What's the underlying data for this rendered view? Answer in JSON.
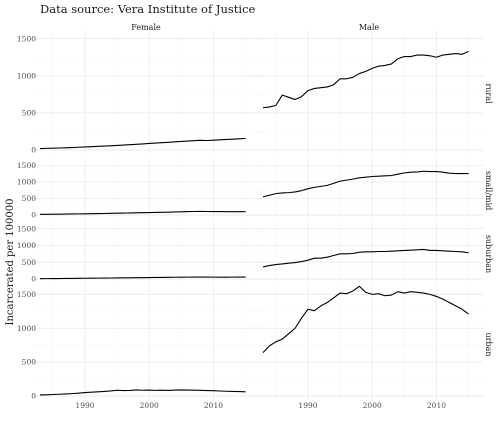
{
  "chart_data": {
    "type": "line",
    "title": "Data source: Vera Institute of Justice",
    "ylabel": "Incarcerated per 100000",
    "xlabel": "",
    "xlim": [
      1983,
      2016
    ],
    "ylim": [
      0,
      1550
    ],
    "x_ticks": [
      1990,
      2000,
      2010
    ],
    "y_ticks": [
      0,
      500,
      1000,
      1500
    ],
    "grid": true,
    "columns": [
      "Female",
      "Male"
    ],
    "rows": [
      "rural",
      "small/mid",
      "suburban",
      "urban"
    ],
    "years": [
      1983,
      1984,
      1985,
      1986,
      1987,
      1988,
      1989,
      1990,
      1991,
      1992,
      1993,
      1994,
      1995,
      1996,
      1997,
      1998,
      1999,
      2000,
      2001,
      2002,
      2003,
      2004,
      2005,
      2006,
      2007,
      2008,
      2009,
      2010,
      2011,
      2012,
      2013,
      2014,
      2015
    ],
    "panels": [
      {
        "row": "rural",
        "col": "Female",
        "values": [
          20,
          22,
          24,
          27,
          30,
          33,
          37,
          41,
          45,
          49,
          53,
          57,
          62,
          67,
          72,
          77,
          82,
          88,
          93,
          98,
          104,
          110,
          116,
          121,
          126,
          130,
          128,
          132,
          137,
          142,
          146,
          151,
          156
        ]
      },
      {
        "row": "rural",
        "col": "Male",
        "values": [
          570,
          580,
          600,
          740,
          710,
          680,
          720,
          800,
          830,
          840,
          850,
          880,
          960,
          960,
          980,
          1030,
          1060,
          1100,
          1130,
          1140,
          1160,
          1230,
          1260,
          1260,
          1280,
          1280,
          1270,
          1250,
          1280,
          1290,
          1300,
          1290,
          1330
        ]
      },
      {
        "row": "small/mid",
        "col": "Female",
        "values": [
          20,
          22,
          24,
          26,
          28,
          31,
          34,
          37,
          40,
          43,
          46,
          50,
          54,
          58,
          62,
          66,
          70,
          74,
          78,
          82,
          86,
          92,
          98,
          103,
          106,
          108,
          106,
          104,
          103,
          102,
          102,
          101,
          100
        ]
      },
      {
        "row": "small/mid",
        "col": "Male",
        "values": [
          550,
          600,
          650,
          670,
          680,
          700,
          740,
          800,
          840,
          870,
          900,
          960,
          1030,
          1060,
          1090,
          1130,
          1150,
          1170,
          1180,
          1190,
          1200,
          1240,
          1280,
          1300,
          1310,
          1330,
          1320,
          1320,
          1300,
          1270,
          1260,
          1260,
          1260
        ]
      },
      {
        "row": "suburban",
        "col": "Female",
        "values": [
          10,
          11,
          12,
          14,
          16,
          18,
          20,
          22,
          24,
          26,
          28,
          30,
          32,
          34,
          36,
          38,
          40,
          43,
          46,
          48,
          50,
          52,
          54,
          56,
          58,
          59,
          58,
          56,
          55,
          55,
          56,
          57,
          58
        ]
      },
      {
        "row": "suburban",
        "col": "Male",
        "values": [
          360,
          400,
          430,
          450,
          470,
          490,
          520,
          560,
          620,
          620,
          650,
          700,
          750,
          750,
          760,
          800,
          810,
          810,
          820,
          820,
          830,
          840,
          850,
          860,
          870,
          880,
          850,
          850,
          840,
          830,
          820,
          810,
          780
        ]
      },
      {
        "row": "urban",
        "col": "Female",
        "values": [
          15,
          18,
          22,
          26,
          30,
          35,
          42,
          50,
          56,
          62,
          68,
          75,
          85,
          80,
          82,
          90,
          85,
          88,
          83,
          86,
          82,
          88,
          90,
          88,
          86,
          84,
          80,
          78,
          74,
          70,
          68,
          66,
          62
        ]
      },
      {
        "row": "urban",
        "col": "Male",
        "values": [
          640,
          740,
          800,
          840,
          920,
          1000,
          1150,
          1280,
          1260,
          1330,
          1380,
          1450,
          1520,
          1510,
          1550,
          1620,
          1530,
          1500,
          1510,
          1480,
          1490,
          1540,
          1520,
          1540,
          1530,
          1520,
          1500,
          1470,
          1430,
          1380,
          1330,
          1280,
          1210
        ]
      }
    ]
  }
}
